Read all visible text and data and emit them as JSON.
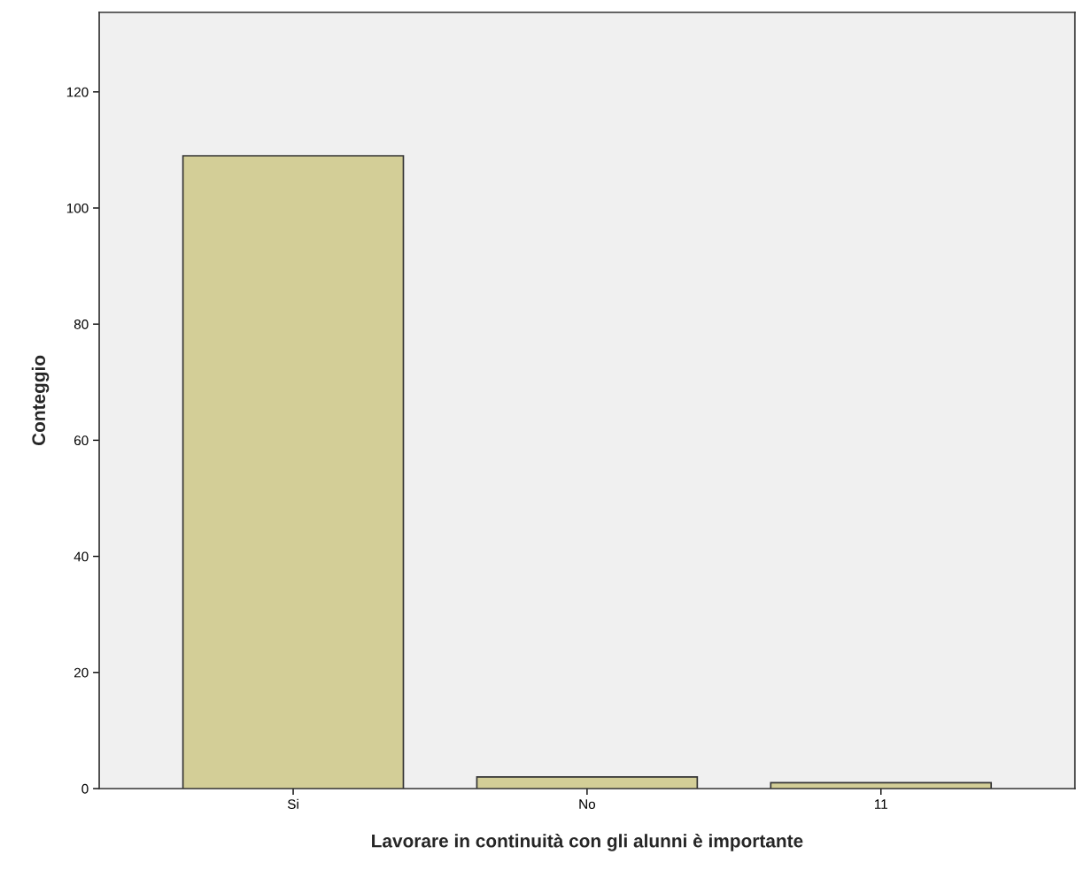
{
  "chart_data": {
    "type": "bar",
    "xlabel": "Lavorare in continuità con gli alunni è importante",
    "ylabel": "Conteggio",
    "categories": [
      "Si",
      "No",
      "11"
    ],
    "values": [
      109,
      2,
      1
    ],
    "color": "#d3ce97",
    "ylim": [
      0,
      133.7
    ],
    "yticks": [
      0,
      20,
      40,
      60,
      80,
      100,
      120
    ],
    "grid": false,
    "legend": false
  }
}
